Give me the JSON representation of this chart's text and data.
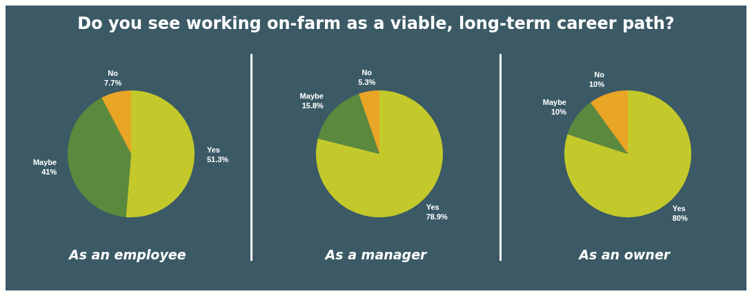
{
  "chart_data": [
    {
      "type": "pie",
      "title": "Do you see working on-farm as a viable, long-term career path?",
      "xlabel": "As an employee",
      "categories": [
        "Yes",
        "Maybe",
        "No"
      ],
      "values": [
        51.3,
        41,
        7.7
      ],
      "value_labels": [
        "51.3%",
        "41%",
        "7.7%"
      ],
      "colors": [
        "#c3c92a",
        "#5b8a3e",
        "#e9a526"
      ]
    },
    {
      "type": "pie",
      "xlabel": "As a manager",
      "categories": [
        "Yes",
        "Maybe",
        "No"
      ],
      "values": [
        78.9,
        15.8,
        5.3
      ],
      "value_labels": [
        "78.9%",
        "15.8%",
        "5.3%"
      ],
      "colors": [
        "#c3c92a",
        "#5b8a3e",
        "#e9a526"
      ]
    },
    {
      "type": "pie",
      "xlabel": "As an owner",
      "categories": [
        "Yes",
        "Maybe",
        "No"
      ],
      "values": [
        80,
        10,
        10
      ],
      "value_labels": [
        "80%",
        "10%",
        "10%"
      ],
      "colors": [
        "#c3c92a",
        "#5b8a3e",
        "#e9a526"
      ]
    }
  ]
}
